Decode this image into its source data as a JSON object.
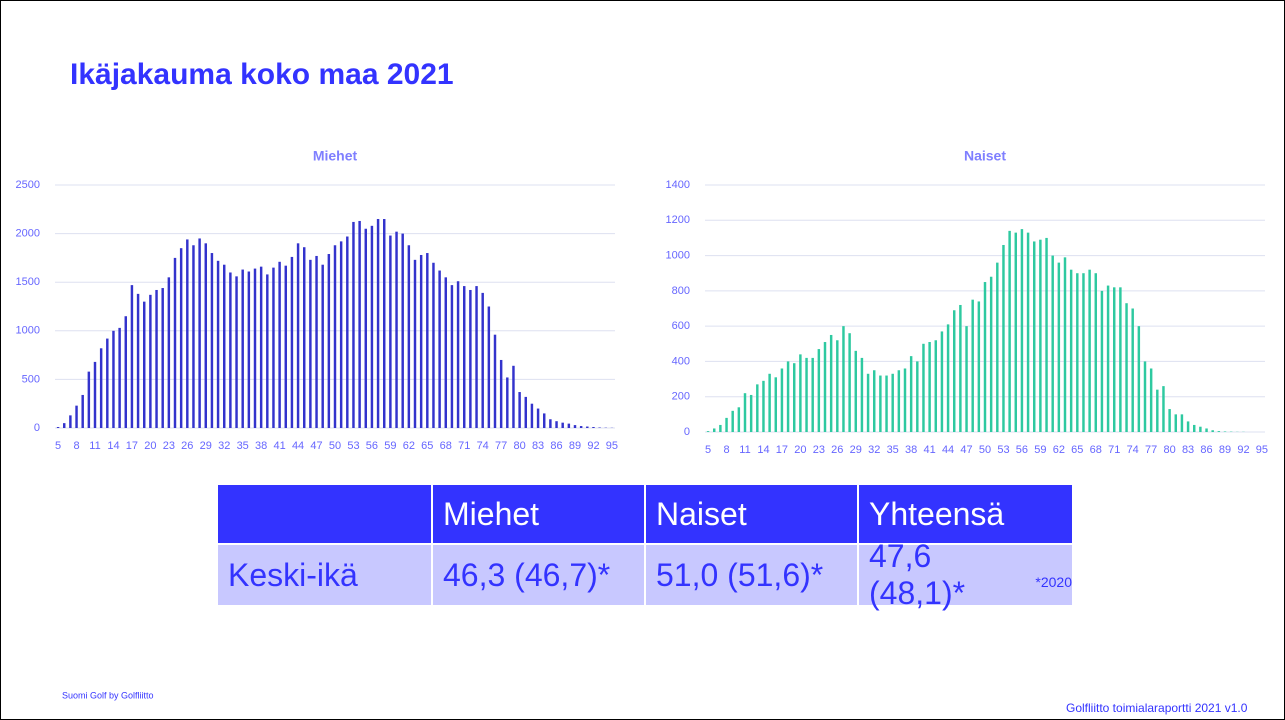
{
  "title": "Ikäjakauma koko maa 2021",
  "chart_data": [
    {
      "type": "bar",
      "title": "Miehet",
      "color": "#3333cc",
      "grid": true,
      "ylim": [
        0,
        2500
      ],
      "yticks": [
        0,
        500,
        1000,
        1500,
        2000,
        2500
      ],
      "categories": [
        "5",
        null,
        null,
        "8",
        null,
        null,
        "11",
        null,
        null,
        "14",
        null,
        null,
        "17",
        null,
        null,
        "20",
        null,
        null,
        "23",
        null,
        null,
        "26",
        null,
        null,
        "29",
        null,
        null,
        "32",
        null,
        null,
        "35",
        null,
        null,
        "38",
        null,
        null,
        "41",
        null,
        null,
        "44",
        null,
        null,
        "47",
        null,
        null,
        "50",
        null,
        null,
        "53",
        null,
        null,
        "56",
        null,
        null,
        "59",
        null,
        null,
        "62",
        null,
        null,
        "65",
        null,
        null,
        "68",
        null,
        null,
        "71",
        null,
        null,
        "74",
        null,
        null,
        "77",
        null,
        null,
        "80",
        null,
        null,
        "83",
        null,
        null,
        "86",
        null,
        null,
        "89",
        null,
        null,
        "92",
        null,
        null,
        "95"
      ],
      "values": [
        10,
        50,
        130,
        230,
        340,
        580,
        680,
        820,
        920,
        1000,
        1030,
        1150,
        1470,
        1380,
        1300,
        1370,
        1420,
        1440,
        1550,
        1750,
        1850,
        1940,
        1880,
        1950,
        1900,
        1800,
        1720,
        1680,
        1600,
        1560,
        1630,
        1610,
        1640,
        1660,
        1580,
        1650,
        1710,
        1670,
        1760,
        1900,
        1860,
        1730,
        1770,
        1680,
        1790,
        1880,
        1920,
        1970,
        2120,
        2130,
        2050,
        2080,
        2150,
        2150,
        1980,
        2020,
        2000,
        1880,
        1730,
        1780,
        1800,
        1700,
        1620,
        1550,
        1470,
        1510,
        1460,
        1420,
        1460,
        1390,
        1250,
        960,
        700,
        520,
        640,
        370,
        320,
        250,
        200,
        150,
        90,
        70,
        55,
        45,
        30,
        20,
        15,
        10,
        5,
        3,
        2
      ]
    },
    {
      "type": "bar",
      "title": "Naiset",
      "color": "#2ec9a0",
      "grid": true,
      "ylim": [
        0,
        1400
      ],
      "yticks": [
        0,
        200,
        400,
        600,
        800,
        1000,
        1200,
        1400
      ],
      "categories": [
        "5",
        null,
        null,
        "8",
        null,
        null,
        "11",
        null,
        null,
        "14",
        null,
        null,
        "17",
        null,
        null,
        "20",
        null,
        null,
        "23",
        null,
        null,
        "26",
        null,
        null,
        "29",
        null,
        null,
        "32",
        null,
        null,
        "35",
        null,
        null,
        "38",
        null,
        null,
        "41",
        null,
        null,
        "44",
        null,
        null,
        "47",
        null,
        null,
        "50",
        null,
        null,
        "53",
        null,
        null,
        "56",
        null,
        null,
        "59",
        null,
        null,
        "62",
        null,
        null,
        "65",
        null,
        null,
        "68",
        null,
        null,
        "71",
        null,
        null,
        "74",
        null,
        null,
        "77",
        null,
        null,
        "80",
        null,
        null,
        "83",
        null,
        null,
        "86",
        null,
        null,
        "89",
        null,
        null,
        "92",
        null,
        null,
        "95"
      ],
      "values": [
        5,
        20,
        40,
        80,
        120,
        140,
        220,
        210,
        270,
        290,
        330,
        310,
        360,
        400,
        390,
        440,
        420,
        420,
        470,
        510,
        550,
        520,
        600,
        560,
        460,
        420,
        330,
        350,
        320,
        320,
        330,
        350,
        360,
        430,
        400,
        500,
        510,
        520,
        570,
        610,
        690,
        720,
        600,
        750,
        740,
        850,
        880,
        960,
        1060,
        1140,
        1130,
        1150,
        1130,
        1080,
        1090,
        1100,
        1000,
        960,
        990,
        920,
        900,
        900,
        920,
        900,
        800,
        830,
        820,
        820,
        730,
        700,
        600,
        400,
        360,
        240,
        260,
        130,
        100,
        100,
        60,
        40,
        30,
        20,
        10,
        5,
        3,
        2,
        1,
        1,
        0,
        0,
        0
      ]
    }
  ],
  "table": {
    "header": [
      "Miehet",
      "Naiset",
      "Yhteensä"
    ],
    "row_label": "Keski-ikä",
    "row": [
      "46,3 (46,7)*",
      "51,0 (51,6)*",
      "47,6 (48,1)*"
    ],
    "note": "*2020"
  },
  "footer": {
    "left": "Suomi Golf by Golfliitto",
    "right": "Golfliitto toimialaraportti 2021 v1.0"
  }
}
